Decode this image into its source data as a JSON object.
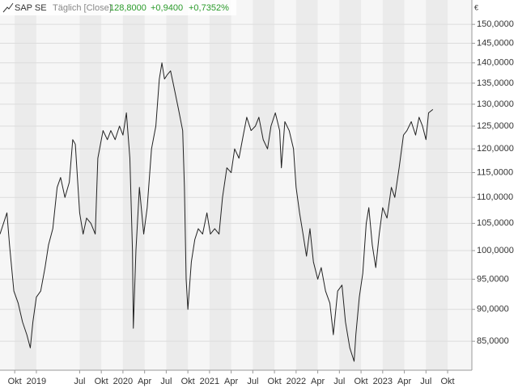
{
  "chart_data": {
    "type": "line",
    "title": "SAP SE",
    "subtitle": "Täglich [Close]",
    "annotations": [
      "128,8000",
      "+0,9400",
      "+0,7352%"
    ],
    "y_label": "€",
    "color": "#222222",
    "log_y": true,
    "grid": true,
    "xlim": [
      2018.58,
      2024.03
    ],
    "xticks": [
      {
        "value": 2018.75,
        "label": "Okt"
      },
      2019,
      {
        "value": 2019.5,
        "label": "Jul"
      },
      {
        "value": 2019.75,
        "label": "Okt"
      },
      2020,
      {
        "value": 2020.25,
        "label": "Apr"
      },
      {
        "value": 2020.5,
        "label": "Jul"
      },
      {
        "value": 2020.75,
        "label": "Okt"
      },
      2021,
      {
        "value": 2021.25,
        "label": "Apr"
      },
      {
        "value": 2021.5,
        "label": "Jul"
      },
      {
        "value": 2021.75,
        "label": "Okt"
      },
      2022,
      {
        "value": 2022.25,
        "label": "Apr"
      },
      {
        "value": 2022.5,
        "label": "Jul"
      },
      {
        "value": 2022.75,
        "label": "Okt"
      },
      2023,
      {
        "value": 2023.25,
        "label": "Apr"
      },
      {
        "value": 2023.5,
        "label": "Jul"
      },
      {
        "value": 2023.75,
        "label": "Okt"
      }
    ],
    "ylim": [
      80.7,
      156.7
    ],
    "yticks": [
      {
        "value": 85,
        "label": "85,0000"
      },
      {
        "value": 90,
        "label": "90,0000"
      },
      {
        "value": 95,
        "label": "95,0000"
      },
      {
        "value": 100,
        "label": "100,0000"
      },
      {
        "value": 105,
        "label": "105,0000"
      },
      {
        "value": 110,
        "label": "110,0000"
      },
      {
        "value": 115,
        "label": "115,0000"
      },
      {
        "value": 120,
        "label": "120,0000"
      },
      {
        "value": 125,
        "label": "125,0000"
      },
      {
        "value": 130,
        "label": "130,0000"
      },
      {
        "value": 135,
        "label": "135,0000"
      },
      {
        "value": 140,
        "label": "140,0000"
      },
      {
        "value": 145,
        "label": "145,0000"
      },
      {
        "value": 150,
        "label": "150,0000"
      }
    ],
    "x": [
      2018.58,
      2018.66,
      2018.69,
      2018.74,
      2018.79,
      2018.84,
      2018.89,
      2018.93,
      2018.96,
      2019.0,
      2019.05,
      2019.1,
      2019.14,
      2019.19,
      2019.24,
      2019.28,
      2019.33,
      2019.38,
      2019.42,
      2019.45,
      2019.5,
      2019.54,
      2019.58,
      2019.63,
      2019.68,
      2019.71,
      2019.77,
      2019.82,
      2019.86,
      2019.91,
      2019.96,
      2020.0,
      2020.04,
      2020.08,
      2020.11,
      2020.12,
      2020.15,
      2020.19,
      2020.24,
      2020.28,
      2020.33,
      2020.38,
      2020.42,
      2020.45,
      2020.48,
      2020.51,
      2020.55,
      2020.58,
      2020.64,
      2020.69,
      2020.71,
      2020.73,
      2020.75,
      2020.79,
      2020.83,
      2020.87,
      2020.92,
      2020.97,
      2021.01,
      2021.06,
      2021.11,
      2021.15,
      2021.2,
      2021.25,
      2021.29,
      2021.34,
      2021.39,
      2021.43,
      2021.48,
      2021.53,
      2021.57,
      2021.62,
      2021.67,
      2021.71,
      2021.76,
      2021.81,
      2021.83,
      2021.87,
      2021.92,
      2021.97,
      2022.0,
      2022.04,
      2022.08,
      2022.12,
      2022.16,
      2022.2,
      2022.25,
      2022.29,
      2022.34,
      2022.39,
      2022.43,
      2022.48,
      2022.53,
      2022.57,
      2022.62,
      2022.67,
      2022.69,
      2022.73,
      2022.77,
      2022.81,
      2022.84,
      2022.88,
      2022.92,
      2022.96,
      2023.0,
      2023.05,
      2023.1,
      2023.14,
      2023.19,
      2023.24,
      2023.28,
      2023.33,
      2023.38,
      2023.42,
      2023.46,
      2023.5,
      2023.53,
      2023.58
    ],
    "values": [
      103,
      107,
      101,
      93,
      91,
      88,
      86,
      84,
      88,
      92,
      93,
      97,
      101,
      104,
      112,
      114,
      110,
      113,
      122,
      121,
      107,
      103,
      106,
      105,
      103,
      118,
      124,
      122,
      124,
      122,
      125,
      123,
      128,
      118,
      100,
      87,
      100,
      112,
      103,
      108,
      120,
      125,
      136,
      140,
      136,
      137,
      138,
      135,
      129,
      124,
      112,
      95,
      90,
      98,
      102,
      104,
      103,
      107,
      103,
      104,
      103,
      110,
      116,
      115,
      120,
      118,
      123,
      127,
      124,
      125,
      127,
      122,
      120,
      125,
      128,
      124,
      116,
      126,
      124,
      120,
      112,
      107,
      103,
      99,
      104,
      98,
      95,
      97,
      93,
      91,
      86,
      93,
      94,
      88,
      84,
      82,
      86,
      92,
      96,
      105,
      108,
      101,
      97,
      103,
      108,
      106,
      112,
      110,
      116,
      123,
      124,
      126,
      123,
      127,
      125,
      122,
      128,
      128.8
    ]
  }
}
